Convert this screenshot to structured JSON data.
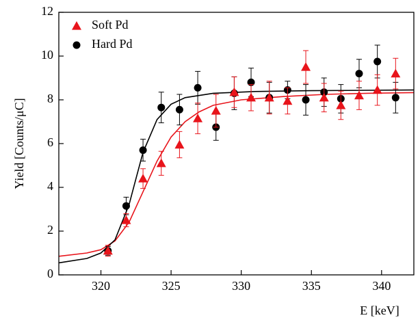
{
  "chart_data": {
    "type": "scatter",
    "xlabel": "E [keV]",
    "ylabel": "Yield [Counts/μC]",
    "xlim": [
      317,
      342.3
    ],
    "ylim": [
      0,
      12
    ],
    "xticks": [
      320,
      325,
      330,
      335,
      340
    ],
    "yticks": [
      0,
      2,
      4,
      6,
      8,
      10,
      12
    ],
    "legend": "upper left",
    "series": [
      {
        "name": "Soft Pd",
        "color": "#e8141b",
        "marker": "triangle",
        "x": [
          320.5,
          321.8,
          323.0,
          324.3,
          325.6,
          326.9,
          328.2,
          329.5,
          330.7,
          332.0,
          333.3,
          334.6,
          335.9,
          337.1,
          338.4,
          339.7,
          341.0
        ],
        "values": [
          1.1,
          2.5,
          4.4,
          5.1,
          5.95,
          7.15,
          7.5,
          8.35,
          8.1,
          8.1,
          7.95,
          9.5,
          8.1,
          7.75,
          8.2,
          8.45,
          9.2
        ],
        "errors": [
          0.25,
          0.3,
          0.45,
          0.55,
          0.6,
          0.7,
          0.75,
          0.7,
          0.6,
          0.75,
          0.6,
          0.75,
          0.65,
          0.65,
          0.65,
          0.7,
          0.7
        ]
      },
      {
        "name": "Hard Pd",
        "color": "#000000",
        "marker": "circle",
        "x": [
          320.5,
          321.8,
          323.0,
          324.3,
          325.6,
          326.9,
          328.2,
          329.5,
          330.7,
          332.0,
          333.3,
          334.6,
          335.9,
          337.1,
          338.4,
          339.7,
          341.0
        ],
        "values": [
          1.1,
          3.15,
          5.7,
          7.65,
          7.55,
          8.55,
          6.75,
          8.3,
          8.8,
          8.1,
          8.45,
          8.0,
          8.35,
          8.05,
          9.2,
          9.75,
          8.1
        ],
        "errors": [
          0.2,
          0.4,
          0.5,
          0.7,
          0.7,
          0.75,
          0.6,
          0.75,
          0.65,
          0.7,
          0.4,
          0.7,
          0.65,
          0.65,
          0.65,
          0.75,
          0.7
        ]
      }
    ],
    "fits": [
      {
        "color": "#e8141b",
        "x": [
          317,
          319,
          320,
          321,
          322,
          323,
          324,
          325,
          326,
          327,
          328,
          330,
          333,
          336,
          339,
          342.3
        ],
        "values": [
          0.85,
          1.0,
          1.15,
          1.55,
          2.4,
          3.8,
          5.2,
          6.3,
          7.0,
          7.45,
          7.75,
          8.0,
          8.15,
          8.25,
          8.3,
          8.33
        ]
      },
      {
        "color": "#000000",
        "x": [
          317,
          319,
          320,
          321,
          322,
          322.5,
          323,
          324,
          325,
          326,
          328,
          331,
          335,
          342.3
        ],
        "values": [
          0.55,
          0.75,
          1.0,
          1.6,
          3.2,
          4.4,
          5.6,
          7.1,
          7.8,
          8.1,
          8.3,
          8.38,
          8.42,
          8.45
        ]
      }
    ]
  }
}
